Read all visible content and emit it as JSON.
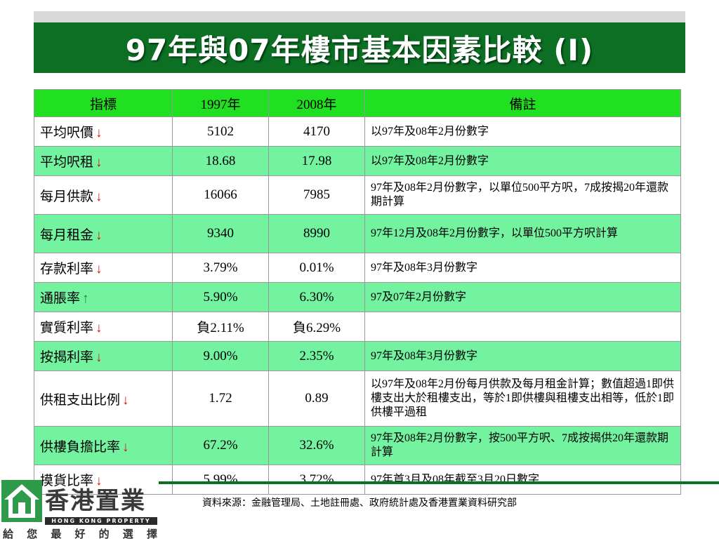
{
  "title": "97年與07年樓市基本因素比較 (I)",
  "table": {
    "headers": [
      "指標",
      "1997年",
      "2008年",
      "備註"
    ],
    "rows": [
      {
        "indicator": "平均呎價",
        "arrow": "↓",
        "y1997": "5102",
        "y2008": "4170",
        "note": "以97年及08年2月份數字"
      },
      {
        "indicator": "平均呎租",
        "arrow": "↓",
        "y1997": "18.68",
        "y2008": "17.98",
        "note": "以97年及08年2月份數字"
      },
      {
        "indicator": "每月供款",
        "arrow": "↓",
        "y1997": "16066",
        "y2008": "7985",
        "note": "97年及08年2月份數字，以單位500平方呎，7成按揭20年還款期計算"
      },
      {
        "indicator": "每月租金",
        "arrow": "↓",
        "y1997": "9340",
        "y2008": "8990",
        "note": "97年12月及08年2月份數字，以單位500平方呎計算"
      },
      {
        "indicator": "存款利率",
        "arrow": "↓",
        "y1997": "3.79%",
        "y2008": "0.01%",
        "note": "97年及08年3月份數字"
      },
      {
        "indicator": "通脹率",
        "arrow": "↑",
        "y1997": "5.90%",
        "y2008": "6.30%",
        "note": "97及07年2月份數字"
      },
      {
        "indicator": "實質利率",
        "arrow": "↓",
        "y1997": "負2.11%",
        "y2008": "負6.29%",
        "note": ""
      },
      {
        "indicator": "按揭利率",
        "arrow": "↓",
        "y1997": "9.00%",
        "y2008": "2.35%",
        "note": "97年及08年3月份數字"
      },
      {
        "indicator": "供租支出比例",
        "arrow": "↓",
        "y1997": "1.72",
        "y2008": "0.89",
        "note": "以97年及08年2月份每月供款及每月租金計算；數值超過1即供樓支出大於租樓支出，等於1即供樓與租樓支出相等，低於1即供樓平過租"
      },
      {
        "indicator": "供樓負擔比率",
        "arrow": "↓",
        "y1997": "67.2%",
        "y2008": "32.6%",
        "note": "97年及08年2月份數字，按500平方呎、7成按揭供20年還款期計算"
      },
      {
        "indicator": "摸貨比率",
        "arrow": "↓",
        "y1997": "5.99%",
        "y2008": "3.72%",
        "note": "97年首3月及08年截至3月20日數字"
      }
    ]
  },
  "source": "資料來源：金融管理局、土地註冊處、政府統計處及香港置業資料研究部",
  "logo": {
    "name": "香港置業",
    "english": "HONG KONG PROPERTY",
    "slogan": [
      "給",
      "您",
      "最",
      "好",
      "的",
      "選",
      "擇"
    ]
  },
  "colors": {
    "title_bg": "#0c6f24",
    "header_bg": "#21e021",
    "row_highlight": "#73f2a0",
    "arrow_down": "#e01010",
    "arrow_up": "#118a2a"
  }
}
